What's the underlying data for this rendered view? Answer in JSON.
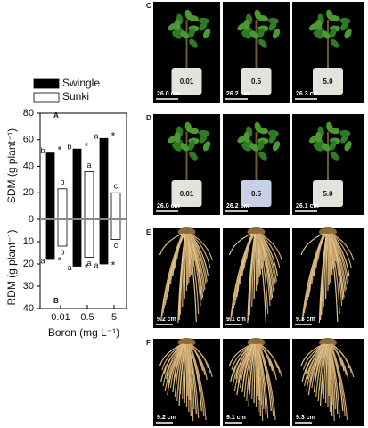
{
  "chart_data": [
    {
      "type": "bar",
      "panel": "A",
      "ylabel": "SDM (g plant⁻¹)",
      "categories": [
        "0.01",
        "0.5",
        "5"
      ],
      "ylim": [
        0,
        80
      ],
      "yticks": [
        0,
        20,
        40,
        60,
        80
      ],
      "series": [
        {
          "name": "Swingle",
          "color": "#000000",
          "values": [
            50,
            53,
            61
          ],
          "letters": [
            "b",
            "b",
            "a"
          ],
          "marks": [
            "*",
            "*",
            "*"
          ]
        },
        {
          "name": "Sunki",
          "color": "#ffffff",
          "values": [
            23,
            36,
            20
          ],
          "letters": [
            "b",
            "a",
            "c"
          ]
        }
      ]
    },
    {
      "type": "bar",
      "panel": "B",
      "ylabel": "RDM (g plant⁻¹)",
      "xlabel": "Boron (mg L⁻¹)",
      "categories": [
        "0.01",
        "0.5",
        "5"
      ],
      "ylim": [
        40,
        0
      ],
      "yticks": [
        10,
        20,
        30,
        40
      ],
      "series": [
        {
          "name": "Swingle",
          "color": "#000000",
          "values": [
            18,
            21,
            20
          ],
          "letters": [
            "a",
            "a",
            "a"
          ],
          "marks": [
            "*",
            "*",
            "*"
          ]
        },
        {
          "name": "Sunki",
          "color": "#ffffff",
          "values": [
            12,
            17,
            9
          ],
          "letters": [
            "b",
            "a",
            "c"
          ]
        }
      ]
    }
  ],
  "photos": [
    {
      "panel": "C",
      "kind": "shoot",
      "images": [
        {
          "pot": "0.01",
          "scale": "26.0 cm"
        },
        {
          "pot": "0.5",
          "scale": "26.2 cm"
        },
        {
          "pot": "5.0",
          "scale": "26.3 cm"
        }
      ]
    },
    {
      "panel": "D",
      "kind": "shoot",
      "images": [
        {
          "pot": "0.01",
          "scale": "26.0 cm"
        },
        {
          "pot": "0.5",
          "scale": "26.2 cm"
        },
        {
          "pot": "5.0",
          "scale": "26.1 cm"
        }
      ]
    },
    {
      "panel": "E",
      "kind": "root",
      "images": [
        {
          "scale": "9.2 cm"
        },
        {
          "scale": "9.1 cm"
        },
        {
          "scale": "9.3 cm"
        }
      ]
    },
    {
      "panel": "F",
      "kind": "root",
      "images": [
        {
          "scale": "9.2 cm"
        },
        {
          "scale": "9.1 cm"
        },
        {
          "scale": "9.3 cm"
        }
      ]
    }
  ]
}
